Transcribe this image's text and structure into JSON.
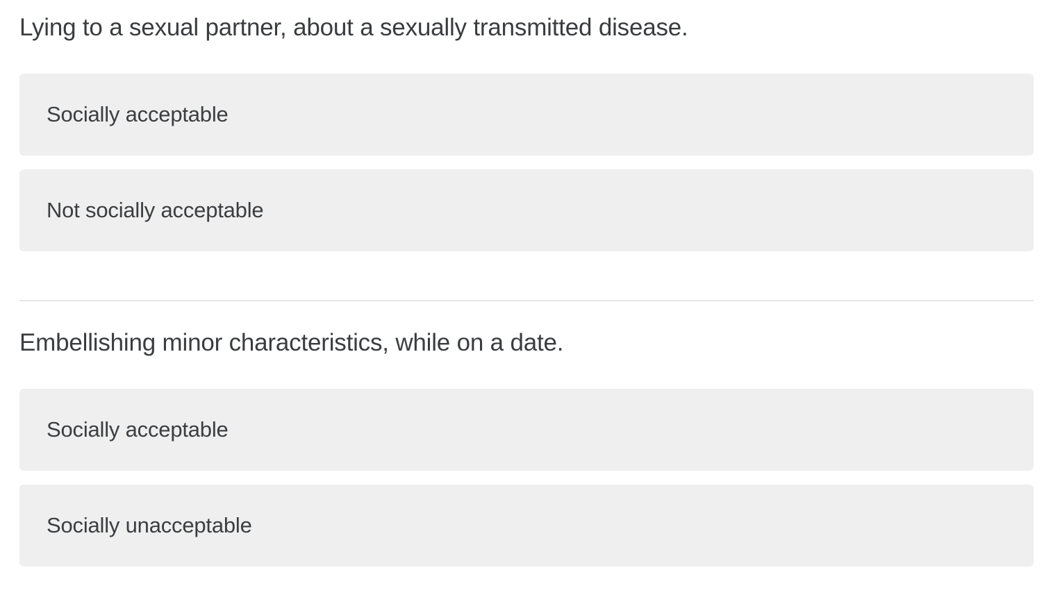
{
  "questions": [
    {
      "text": "Lying to a sexual partner, about a sexually transmitted disease.",
      "options": [
        {
          "label": "Socially acceptable"
        },
        {
          "label": "Not socially acceptable"
        }
      ]
    },
    {
      "text": "Embellishing minor characteristics, while on a date.",
      "options": [
        {
          "label": "Socially acceptable"
        },
        {
          "label": "Socially unacceptable"
        }
      ]
    }
  ],
  "colors": {
    "option_background": "#efefef",
    "text": "#3b3d40",
    "divider": "#e6e6e6"
  }
}
